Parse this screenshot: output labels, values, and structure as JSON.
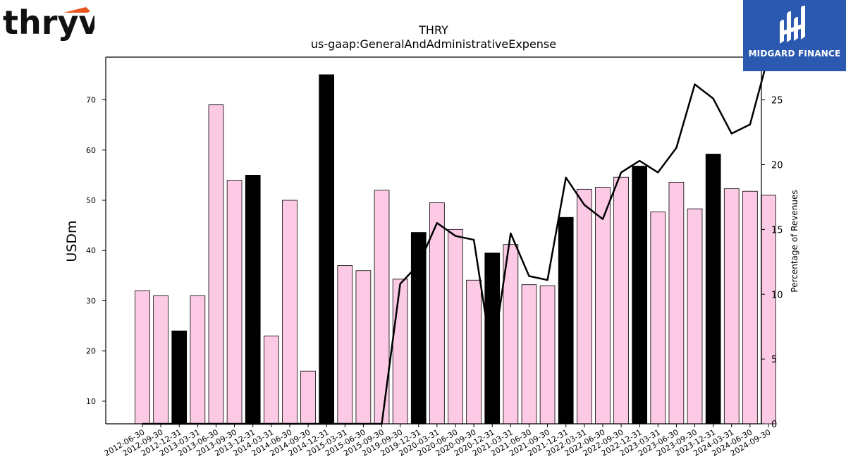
{
  "logos": {
    "left": {
      "text": "thryv",
      "accent": "#e8541e"
    },
    "right": {
      "text": "MIDGARD FINANCE",
      "background": "#2b59b0"
    }
  },
  "chart_data": {
    "type": "bar",
    "title": "THRY",
    "subtitle": "us-gaap:GeneralAndAdministrativeExpense",
    "ylabel": "USDm",
    "y2label": "Percentage of Revenues",
    "ylim": [
      5.5,
      78.5
    ],
    "y2lim": [
      0,
      28.3
    ],
    "yticks": [
      10,
      20,
      30,
      40,
      50,
      60,
      70
    ],
    "y2ticks": [
      0,
      5,
      10,
      15,
      20,
      25
    ],
    "colors": {
      "bar": "#fccae4",
      "bar_q4": "#000000",
      "line": "#000000"
    },
    "categories": [
      "2012-06-30",
      "2012-09-30",
      "2012-12-31",
      "2013-03-31",
      "2013-06-30",
      "2013-09-30",
      "2013-12-31",
      "2014-03-31",
      "2014-06-30",
      "2014-09-30",
      "2014-12-31",
      "2015-03-31",
      "2015-06-30",
      "2015-09-30",
      "2019-09-30",
      "2019-12-31",
      "2020-03-31",
      "2020-06-30",
      "2020-09-30",
      "2020-12-31",
      "2021-03-31",
      "2021-06-30",
      "2021-09-30",
      "2021-12-31",
      "2022-03-31",
      "2022-06-30",
      "2022-09-30",
      "2022-12-31",
      "2023-03-31",
      "2023-06-30",
      "2023-09-30",
      "2023-12-31",
      "2024-03-31",
      "2024-06-30",
      "2024-09-30"
    ],
    "series": [
      {
        "type": "bar",
        "values": [
          32,
          31,
          24,
          31,
          69,
          54,
          55,
          23,
          50,
          16,
          75,
          37,
          36,
          52,
          34.3,
          43.6,
          49.5,
          44.2,
          34.1,
          39.5,
          41.2,
          33.2,
          33.0,
          46.6,
          52.2,
          52.6,
          54.6,
          56.8,
          47.7,
          53.6,
          48.3,
          59.2,
          52.3,
          51.8,
          51.0
        ],
        "highlight": [
          false,
          false,
          true,
          false,
          false,
          false,
          true,
          false,
          false,
          false,
          true,
          false,
          false,
          false,
          false,
          true,
          false,
          false,
          false,
          true,
          false,
          false,
          false,
          true,
          false,
          false,
          false,
          true,
          false,
          false,
          false,
          true,
          false,
          false,
          false
        ]
      },
      {
        "type": "line",
        "axis": "right",
        "values": [
          0,
          0,
          0,
          0,
          0,
          0,
          0,
          0,
          0,
          0,
          0,
          0,
          0,
          0,
          10.8,
          12.3,
          15.5,
          14.5,
          14.2,
          5.0,
          14.7,
          11.4,
          11.1,
          19.0,
          16.9,
          15.8,
          19.4,
          20.3,
          19.4,
          21.3,
          26.2,
          25.1,
          22.4,
          23.1,
          28.4
        ]
      }
    ],
    "legend": "none",
    "grid": false
  }
}
